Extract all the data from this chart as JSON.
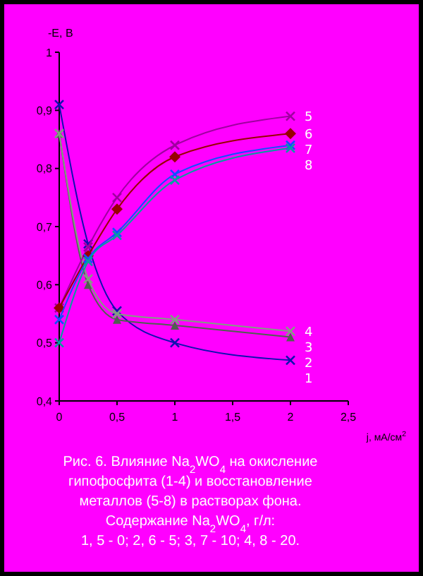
{
  "chart_data": {
    "type": "line",
    "xlabel": "j, мА/см$^{2}$",
    "ylabel": "-E, В",
    "x": [
      0,
      0.25,
      0.5,
      1,
      2
    ],
    "series": [
      {
        "name": "2",
        "color": "#1010b0",
        "marker": "cross",
        "values": [
          0.91,
          0.67,
          0.555,
          0.5,
          0.47
        ]
      },
      {
        "name": "3",
        "color": "#506050",
        "marker": "triangle",
        "values": [
          0.86,
          0.6,
          0.54,
          0.53,
          0.51
        ]
      },
      {
        "name": "4",
        "color": "#80a080",
        "marker": "cross",
        "values": [
          0.86,
          0.61,
          0.55,
          0.54,
          0.52
        ]
      },
      {
        "name": "5",
        "color": "#a000a0",
        "marker": "cross",
        "values": [
          0.56,
          0.665,
          0.75,
          0.84,
          0.89
        ]
      },
      {
        "name": "6",
        "color": "#990000",
        "marker": "diamond",
        "values": [
          0.56,
          0.65,
          0.73,
          0.82,
          0.86
        ]
      },
      {
        "name": "7",
        "color": "#1050ff",
        "marker": "cross",
        "values": [
          0.54,
          0.645,
          0.69,
          0.79,
          0.84
        ]
      },
      {
        "name": "8",
        "color": "#00a0a0",
        "marker": "cross",
        "values": [
          0.5,
          0.64,
          0.685,
          0.78,
          0.835
        ]
      }
    ],
    "xlim": [
      0,
      2.5
    ],
    "xticks": [
      0,
      {
        "value": 0.5,
        "label": "0,5"
      },
      1,
      {
        "value": 1.5,
        "label": "1,5"
      },
      2,
      {
        "value": 2.5,
        "label": "2,5"
      }
    ],
    "ylim": [
      0.4,
      1
    ],
    "yticks": [
      {
        "value": 0.4,
        "label": "0,4"
      },
      {
        "value": 0.5,
        "label": "0,5"
      },
      {
        "value": 0.6,
        "label": "0,6"
      },
      {
        "value": 0.7,
        "label": "0,7"
      },
      {
        "value": 0.8,
        "label": "0,8"
      },
      {
        "value": 0.9,
        "label": "0,9"
      },
      1
    ],
    "line_style": "solid",
    "grid": false,
    "legend": "right",
    "annotations": [
      "1",
      "Рис. 6. Влияние Na$_{2}$WO$_{4}$ на окисление",
      "гипофосфита (1-4) и восстановление",
      "металлов  (5-8) в растворах фона.",
      "Содержание Na$_{2}$WO$_{4}$, г/л:",
      "1, 5 - 0;  2, 6 - 5;  3, 7 - 10;  4, 8 - 20."
    ]
  }
}
